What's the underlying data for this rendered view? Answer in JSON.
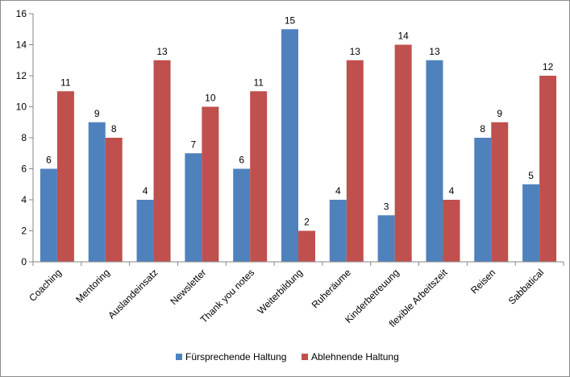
{
  "chart_data": {
    "type": "bar",
    "title": "",
    "xlabel": "",
    "ylabel": "",
    "ylim": [
      0,
      16
    ],
    "yticks": [
      0,
      2,
      4,
      6,
      8,
      10,
      12,
      14,
      16
    ],
    "grid": false,
    "legend_position": "bottom",
    "categories": [
      "Coaching",
      "Mentoring",
      "Auslandeinsatz",
      "Newsletter",
      "Thank you notes",
      "Weiterbildung",
      "Ruheräume",
      "Kinderbetreuung",
      "flexible Arbeitszeit",
      "Reisen",
      "Sabbatical"
    ],
    "series": [
      {
        "name": "Fürsprechende Haltung",
        "color": "#4f81bd",
        "values": [
          6,
          9,
          4,
          7,
          6,
          15,
          4,
          3,
          13,
          8,
          5
        ]
      },
      {
        "name": "Ablehnende Haltung",
        "color": "#c0504d",
        "values": [
          11,
          8,
          13,
          10,
          11,
          2,
          13,
          14,
          4,
          9,
          12
        ]
      }
    ]
  }
}
